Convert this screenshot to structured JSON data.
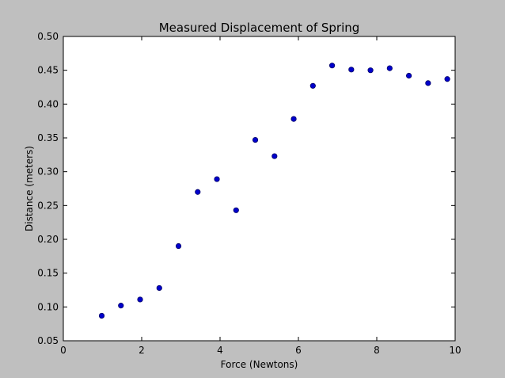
{
  "chart_data": {
    "type": "scatter",
    "title": "Measured Displacement of Spring",
    "xlabel": "Force (Newtons)",
    "ylabel": "Distance (meters)",
    "xlim": [
      0,
      10
    ],
    "ylim": [
      0.05,
      0.5
    ],
    "xticks": [
      0,
      2,
      4,
      6,
      8,
      10
    ],
    "xtick_labels": [
      "0",
      "2",
      "4",
      "6",
      "8",
      "10"
    ],
    "yticks": [
      0.05,
      0.1,
      0.15,
      0.2,
      0.25,
      0.3,
      0.35,
      0.4,
      0.45,
      0.5
    ],
    "ytick_labels": [
      "0.05",
      "0.10",
      "0.15",
      "0.20",
      "0.25",
      "0.30",
      "0.35",
      "0.40",
      "0.45",
      "0.50"
    ],
    "grid": false,
    "legend": "none",
    "series": [
      {
        "marker_color": "#0000cc",
        "x": [
          0.98,
          1.47,
          1.96,
          2.45,
          2.94,
          3.43,
          3.92,
          4.41,
          4.9,
          5.39,
          5.88,
          6.37,
          6.86,
          7.35,
          7.84,
          8.33,
          8.82,
          9.31,
          9.8
        ],
        "y": [
          0.087,
          0.102,
          0.111,
          0.128,
          0.19,
          0.27,
          0.289,
          0.243,
          0.347,
          0.323,
          0.378,
          0.427,
          0.457,
          0.451,
          0.45,
          0.453,
          0.442,
          0.431,
          0.437
        ]
      }
    ]
  }
}
